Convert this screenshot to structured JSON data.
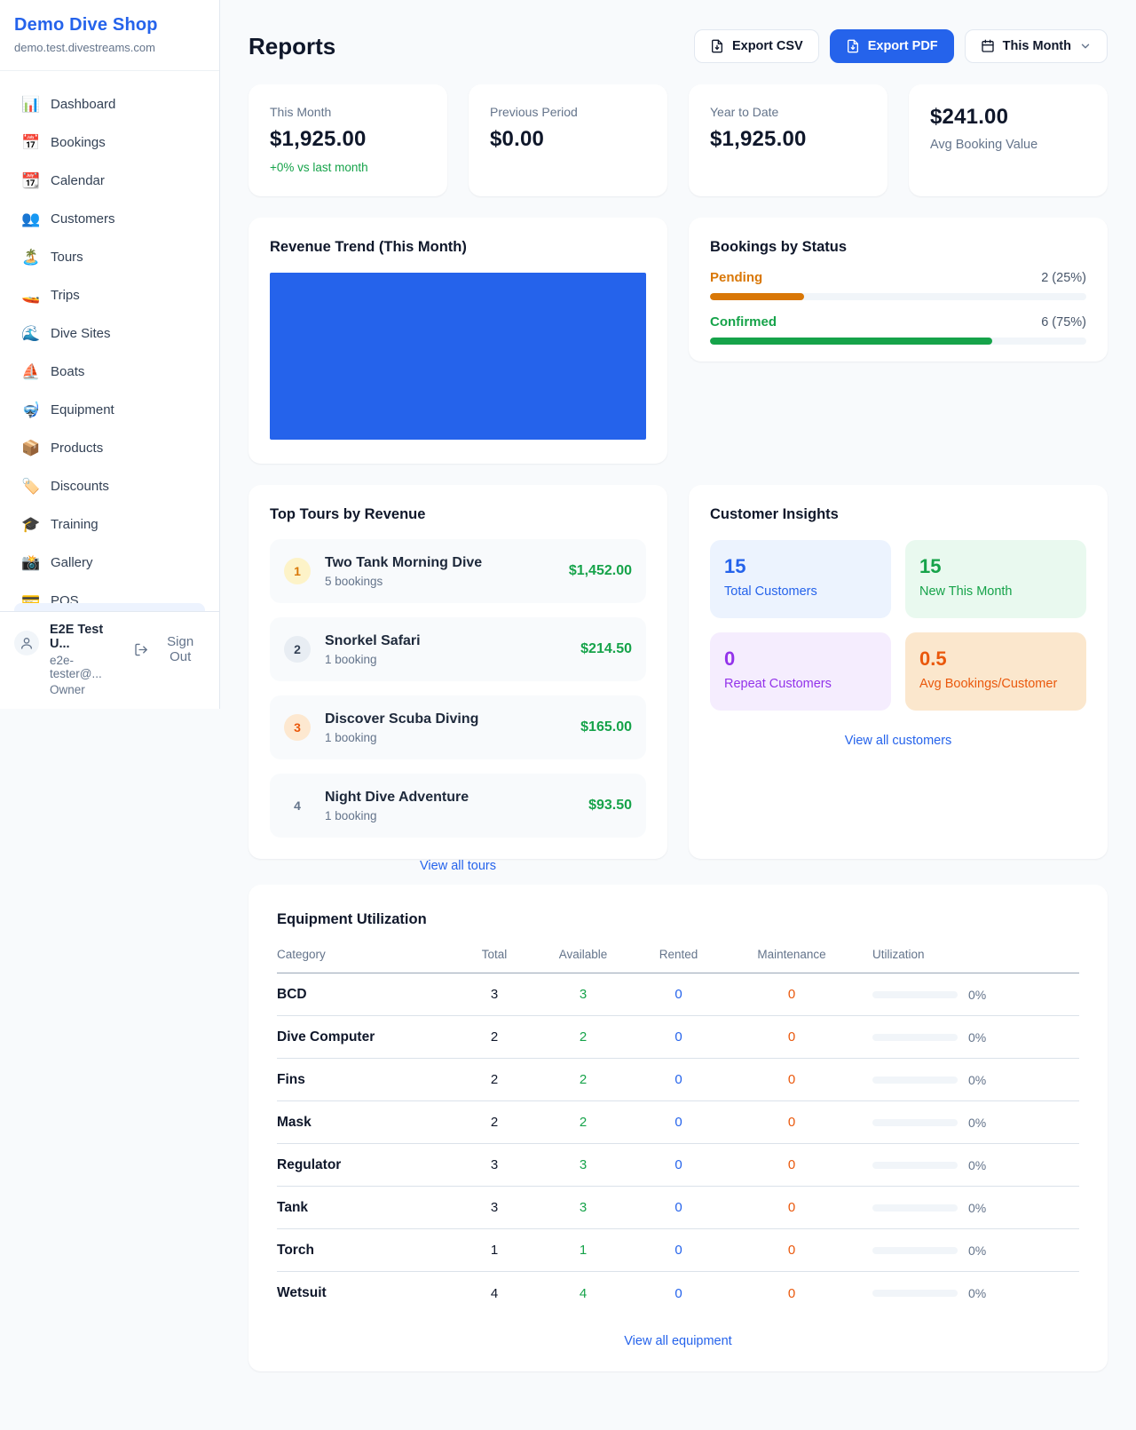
{
  "colors": {
    "accent_blue": "#2563eb",
    "green": "#16a34a",
    "orange_pending": "#d97706",
    "orange_maintenance": "#ea580c",
    "purple": "#9333ea",
    "page_bg": "#f8fafc"
  },
  "sidebar": {
    "shop_name": "Demo Dive Shop",
    "shop_domain": "demo.test.divestreams.com",
    "items": [
      {
        "label": "Dashboard",
        "icon": "📊"
      },
      {
        "label": "Bookings",
        "icon": "📅"
      },
      {
        "label": "Calendar",
        "icon": "📆"
      },
      {
        "label": "Customers",
        "icon": "👥"
      },
      {
        "label": "Tours",
        "icon": "🏝️"
      },
      {
        "label": "Trips",
        "icon": "🚤"
      },
      {
        "label": "Dive Sites",
        "icon": "🌊"
      },
      {
        "label": "Boats",
        "icon": "⛵"
      },
      {
        "label": "Equipment",
        "icon": "🤿"
      },
      {
        "label": "Products",
        "icon": "📦"
      },
      {
        "label": "Discounts",
        "icon": "🏷️"
      },
      {
        "label": "Training",
        "icon": "🎓"
      },
      {
        "label": "Gallery",
        "icon": "📸"
      },
      {
        "label": "POS",
        "icon": "💳"
      }
    ],
    "user": {
      "name": "E2E Test U...",
      "email": "e2e-tester@...",
      "role": "Owner",
      "sign_out_label": "Sign Out"
    }
  },
  "header": {
    "title": "Reports",
    "export_csv_label": "Export CSV",
    "export_pdf_label": "Export PDF",
    "period_selector": "This Month"
  },
  "stats": [
    {
      "label": "This Month",
      "value": "$1,925.00",
      "delta": "+0% vs last month"
    },
    {
      "label": "Previous Period",
      "value": "$0.00"
    },
    {
      "label": "Year to Date",
      "value": "$1,925.00"
    },
    {
      "label": "Avg Booking Value",
      "value": "$241.00"
    }
  ],
  "revenue_trend": {
    "title": "Revenue Trend (This Month)"
  },
  "chart_data": {
    "type": "bar",
    "title": "Revenue Trend (This Month)",
    "categories": [
      "This Month"
    ],
    "values": [
      1925
    ],
    "bar_color": "#2563eb",
    "xlabel": "",
    "ylabel": "",
    "note": "single bar filling the entire plot area; no axes, gridlines or labels visible"
  },
  "bookings_by_status": {
    "title": "Bookings by Status",
    "rows": [
      {
        "label": "Pending",
        "value": "2 (25%)",
        "pct": 25,
        "color": "#d97706"
      },
      {
        "label": "Confirmed",
        "value": "6 (75%)",
        "pct": 75,
        "color": "#16a34a"
      }
    ]
  },
  "top_tours": {
    "title": "Top Tours by Revenue",
    "rows": [
      {
        "rank": "1",
        "name": "Two Tank Morning Dive",
        "bookings": "5 bookings",
        "revenue": "$1,452.00"
      },
      {
        "rank": "2",
        "name": "Snorkel Safari",
        "bookings": "1 booking",
        "revenue": "$214.50"
      },
      {
        "rank": "3",
        "name": "Discover Scuba Diving",
        "bookings": "1 booking",
        "revenue": "$165.00"
      },
      {
        "rank": "4",
        "name": "Night Dive Adventure",
        "bookings": "1 booking",
        "revenue": "$93.50"
      }
    ],
    "link": "View all tours"
  },
  "customer_insights": {
    "title": "Customer Insights",
    "tiles": [
      {
        "value": "15",
        "label": "Total Customers",
        "scheme": "blue"
      },
      {
        "value": "15",
        "label": "New This Month",
        "scheme": "green"
      },
      {
        "value": "0",
        "label": "Repeat Customers",
        "scheme": "purple"
      },
      {
        "value": "0.5",
        "label": "Avg Bookings/Customer",
        "scheme": "orange"
      }
    ],
    "link": "View all customers"
  },
  "equipment": {
    "title": "Equipment Utilization",
    "columns": [
      "Category",
      "Total",
      "Available",
      "Rented",
      "Maintenance",
      "Utilization"
    ],
    "rows": [
      {
        "category": "BCD",
        "total": "3",
        "available": "3",
        "rented": "0",
        "maintenance": "0",
        "utilization_pct": 0,
        "utilization": "0%"
      },
      {
        "category": "Dive Computer",
        "total": "2",
        "available": "2",
        "rented": "0",
        "maintenance": "0",
        "utilization_pct": 0,
        "utilization": "0%"
      },
      {
        "category": "Fins",
        "total": "2",
        "available": "2",
        "rented": "0",
        "maintenance": "0",
        "utilization_pct": 0,
        "utilization": "0%"
      },
      {
        "category": "Mask",
        "total": "2",
        "available": "2",
        "rented": "0",
        "maintenance": "0",
        "utilization_pct": 0,
        "utilization": "0%"
      },
      {
        "category": "Regulator",
        "total": "3",
        "available": "3",
        "rented": "0",
        "maintenance": "0",
        "utilization_pct": 0,
        "utilization": "0%"
      },
      {
        "category": "Tank",
        "total": "3",
        "available": "3",
        "rented": "0",
        "maintenance": "0",
        "utilization_pct": 0,
        "utilization": "0%"
      },
      {
        "category": "Torch",
        "total": "1",
        "available": "1",
        "rented": "0",
        "maintenance": "0",
        "utilization_pct": 0,
        "utilization": "0%"
      },
      {
        "category": "Wetsuit",
        "total": "4",
        "available": "4",
        "rented": "0",
        "maintenance": "0",
        "utilization_pct": 0,
        "utilization": "0%"
      }
    ],
    "link": "View all equipment"
  }
}
